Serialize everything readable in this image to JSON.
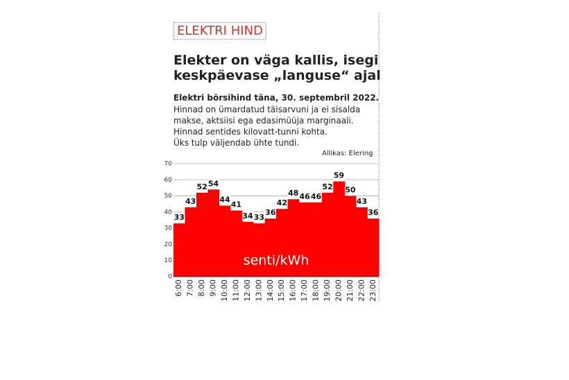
{
  "chart_data": {
    "type": "bar",
    "kicker": "ELEKTRI HIND",
    "title": [
      "Elekter on väga kallis, isegi",
      "keskpäevase „languse“ ajal"
    ],
    "subtitle": "Elektri börsihind täna, 30. septembril 2022.",
    "notes": [
      "Hinnad on ümardatud täisarvuni ja ei sisalda",
      "makse, aktsiisi ega edasimüüja marginaali.",
      "Hinnad sentides kilovatt-tunni kohta.",
      "Üks tulp väljendab ühte tundi."
    ],
    "source": "Allikas: Elering",
    "unit_label": "senti/kWh",
    "categories": [
      "6:00",
      "7:00",
      "8:00",
      "9:00",
      "10:00",
      "11:00",
      "12:00",
      "13:00",
      "14:00",
      "15:00",
      "16:00",
      "17:00",
      "18:00",
      "19:00",
      "20:00",
      "21:00",
      "22:00",
      "23:00"
    ],
    "values": [
      33,
      43,
      52,
      54,
      44,
      41,
      34,
      33,
      36,
      42,
      48,
      46,
      46,
      52,
      59,
      50,
      43,
      36
    ],
    "color": "#ff0000",
    "ylim": [
      0,
      70
    ],
    "yticks": [
      0,
      10,
      20,
      30,
      40,
      50,
      60,
      70
    ],
    "grid": true
  }
}
